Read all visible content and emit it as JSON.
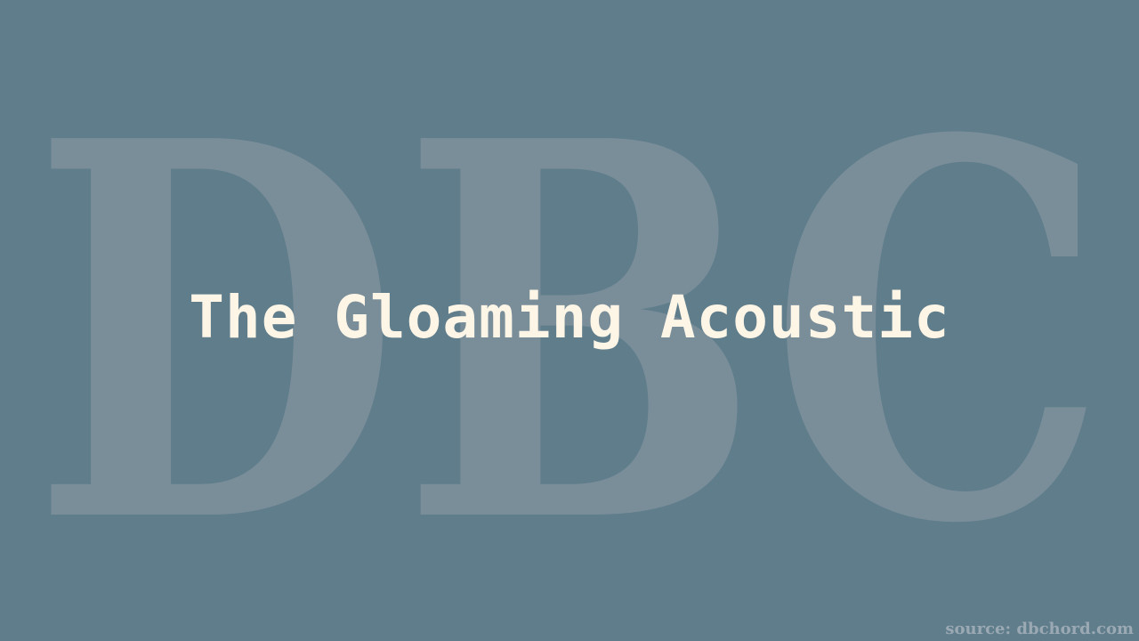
{
  "watermark": {
    "text": "DBC"
  },
  "song": {
    "title": "The Gloaming Acoustic"
  },
  "footer": {
    "source": "source: dbchord.com"
  },
  "colors": {
    "background": "#607d8b",
    "watermark": "#7a8e9a",
    "title": "#fdf5e6",
    "source": "#9aa9b3"
  }
}
